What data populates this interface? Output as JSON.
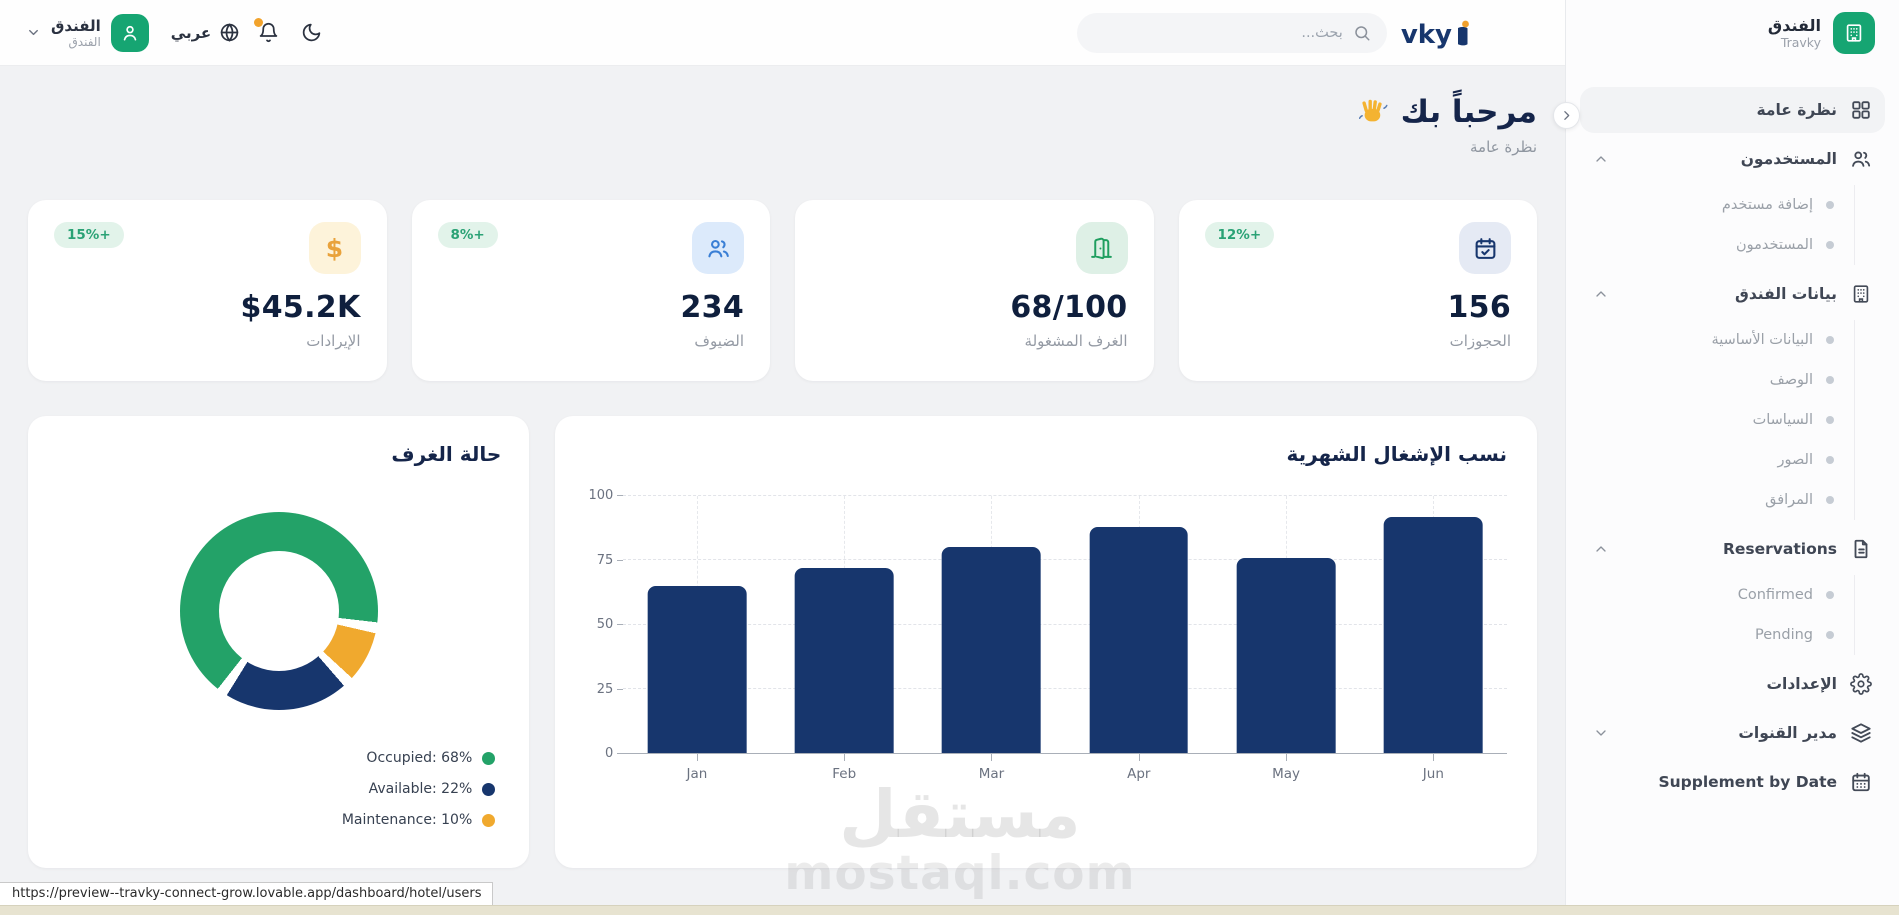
{
  "topbar": {
    "logo_text": "vky",
    "search_placeholder": "بحث...",
    "language_label": "عربي",
    "user": {
      "name": "الفندق",
      "subtitle": "الفندق"
    }
  },
  "sidebar": {
    "app_name": "الفندق",
    "app_subtitle": "Travky",
    "menu": [
      {
        "id": "overview",
        "label": "نظرة عامة",
        "icon": "grid-icon",
        "active": true
      },
      {
        "id": "users",
        "label": "المستخدمون",
        "icon": "users-icon",
        "expanded": true,
        "children": [
          {
            "id": "add-user",
            "label": "إضافة مستخدم"
          },
          {
            "id": "users-list",
            "label": "المستخدمون"
          }
        ]
      },
      {
        "id": "hotel-data",
        "label": "بيانات الفندق",
        "icon": "building-icon",
        "expanded": true,
        "children": [
          {
            "id": "basic-data",
            "label": "البيانات الأساسية"
          },
          {
            "id": "description",
            "label": "الوصف"
          },
          {
            "id": "policies",
            "label": "السياسات"
          },
          {
            "id": "photos",
            "label": "الصور"
          },
          {
            "id": "facilities",
            "label": "المرافق"
          }
        ]
      },
      {
        "id": "reservations",
        "label": "Reservations",
        "icon": "document-icon",
        "expanded": true,
        "children": [
          {
            "id": "confirmed",
            "label": "Confirmed"
          },
          {
            "id": "pending",
            "label": "Pending"
          }
        ]
      },
      {
        "id": "settings",
        "label": "الإعدادات",
        "icon": "gear-icon"
      },
      {
        "id": "channel-manager",
        "label": "مدير القنوات",
        "icon": "layers-icon",
        "expanded": false,
        "collapsible": true
      },
      {
        "id": "supplement-by-date",
        "label": "Supplement by Date",
        "icon": "calendar-icon"
      }
    ]
  },
  "main": {
    "greeting": "مرحباً بك",
    "subtitle": "نظرة عامة",
    "stats": [
      {
        "id": "bookings",
        "value": "156",
        "label": "الحجوزات",
        "badge": "12%+",
        "icon": "calendar-check-icon",
        "icon_bg": "#e5eaf4",
        "icon_color": "#17366d"
      },
      {
        "id": "occupied-rooms",
        "value": "68/100",
        "label": "الغرف المشغولة",
        "badge": null,
        "icon": "door-icon",
        "icon_bg": "#def0e6",
        "icon_color": "#1f9e5f"
      },
      {
        "id": "guests",
        "value": "234",
        "label": "الضيوف",
        "badge": "8%+",
        "icon": "users-icon",
        "icon_bg": "#dceafb",
        "icon_color": "#3a7fd5"
      },
      {
        "id": "revenue",
        "value": "$45.2K",
        "label": "الإيرادات",
        "badge": "15%+",
        "icon": "dollar-icon",
        "icon_bg": "#fdf3da",
        "icon_color": "#e9a23b"
      }
    ],
    "badge_colors": {
      "bg": "#e2f3ea",
      "text": "#2aa275"
    }
  },
  "chart_data": [
    {
      "type": "pie",
      "donut": true,
      "title": "حالة الغرف",
      "start_angle": 215,
      "slices": [
        {
          "label": "Occupied",
          "value": 68,
          "color": "#23a268"
        },
        {
          "label": "Maintenance",
          "value": 10,
          "color": "#f0a92e"
        },
        {
          "label": "Available",
          "value": 22,
          "color": "#17366d"
        }
      ],
      "legend": [
        {
          "text": "Occupied: 68%",
          "color": "#23a268"
        },
        {
          "text": "Available: 22%",
          "color": "#17366d"
        },
        {
          "text": "Maintenance: 10%",
          "color": "#f0a92e"
        }
      ],
      "legend_position": "bottom-right"
    },
    {
      "type": "bar",
      "title": "نسب الإشغال الشهرية",
      "categories": [
        "Jan",
        "Feb",
        "Mar",
        "Apr",
        "May",
        "Jun"
      ],
      "values": [
        65,
        72,
        80,
        88,
        76,
        92
      ],
      "bar_color": "#17366d",
      "ylim": [
        0,
        100
      ],
      "yticks": [
        0,
        25,
        50,
        75,
        100
      ],
      "grid": true,
      "xlabel": "",
      "ylabel": ""
    }
  ],
  "watermark": {
    "line1": "مستقل",
    "line2": "mostaql.com"
  },
  "statusbar": {
    "url": "https://preview--travky-connect-grow.lovable.app/dashboard/hotel/users"
  }
}
